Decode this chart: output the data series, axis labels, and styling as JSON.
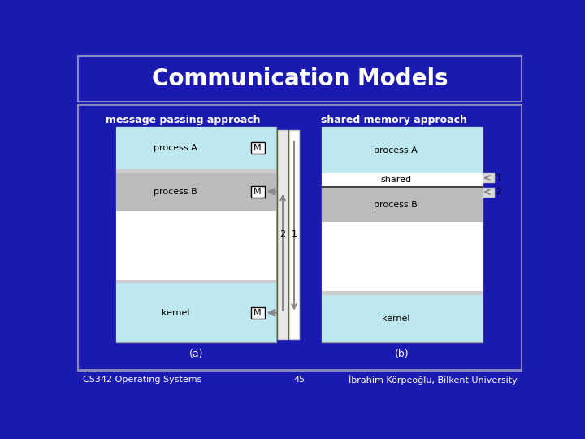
{
  "title": "Communication Models",
  "title_color": "#FFFFFF",
  "title_bg": "#1A1AB0",
  "slide_bg": "#1A1AB0",
  "footer_left": "CS342 Operating Systems",
  "footer_center": "45",
  "footer_right": "İbrahim Körpeoğlu, Bilkent University",
  "label_left": "message passing approach",
  "label_right": "shared memory approach",
  "sub_left": "(a)",
  "sub_right": "(b)",
  "light_blue": "#BEE8F0",
  "light_gray": "#CCCCCC",
  "mid_gray": "#BBBBBB",
  "white": "#FFFFFF",
  "arrow_gray": "#888888",
  "box_outline": "#999999",
  "title_border": "#8888CC",
  "content_border": "#8888BB"
}
